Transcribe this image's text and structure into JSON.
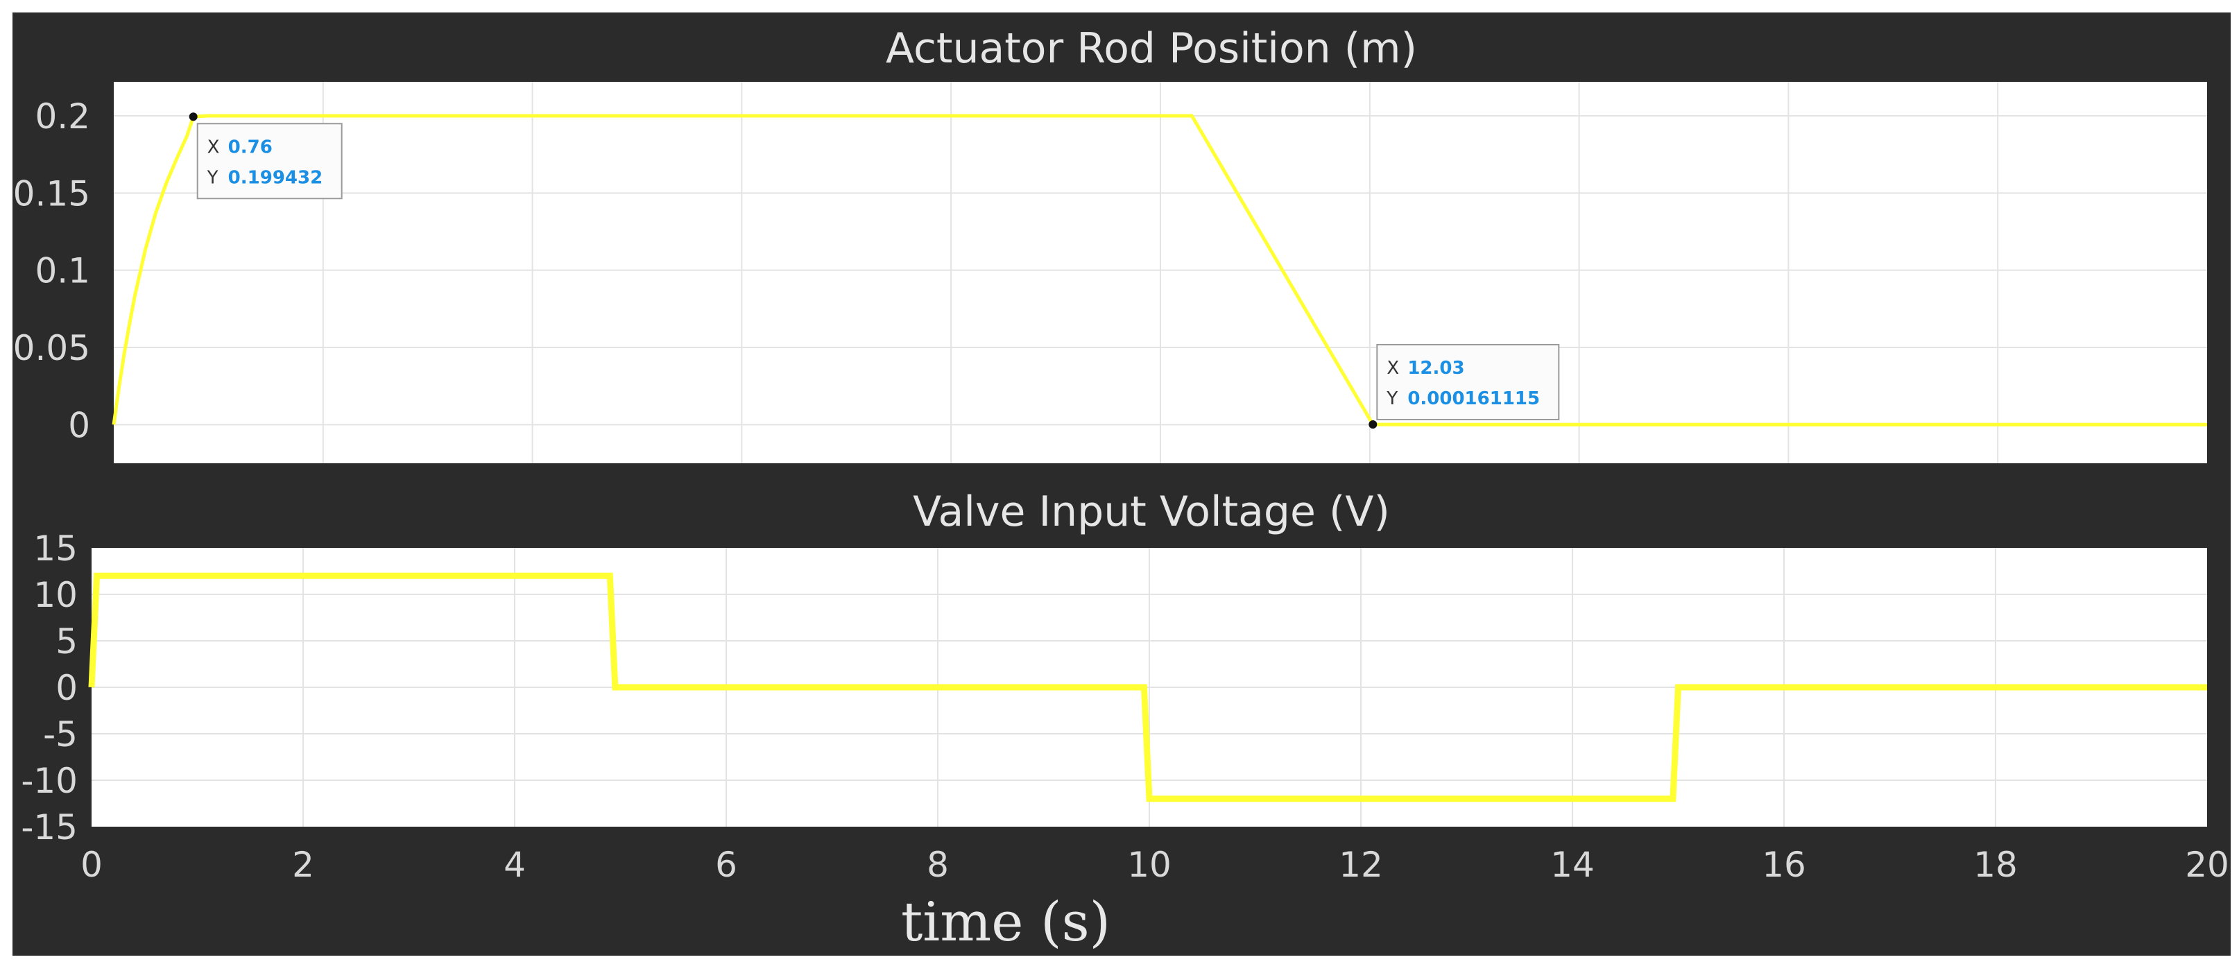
{
  "chart_data": [
    {
      "type": "line",
      "title": "Actuator Rod Position (m)",
      "xlim": [
        0,
        20
      ],
      "ylim": [
        -0.025,
        0.222
      ],
      "yticks": [
        "0",
        "0.05",
        "0.1",
        "0.15",
        "0.2"
      ],
      "ytick_values": [
        0,
        0.05,
        0.1,
        0.15,
        0.2
      ],
      "xgrid_values": [
        2,
        4,
        6,
        8,
        10,
        12,
        14,
        16,
        18
      ],
      "grid": true,
      "series": [
        {
          "color": "#ffff33",
          "x": [
            0,
            0.05,
            0.1,
            0.15,
            0.2,
            0.3,
            0.4,
            0.5,
            0.6,
            0.7,
            0.76,
            0.9,
            1.0,
            2.0,
            4.0,
            6.0,
            8.0,
            10.0,
            10.3,
            12.03,
            13,
            14,
            16,
            18,
            20
          ],
          "y": [
            0,
            0.024,
            0.046,
            0.065,
            0.083,
            0.113,
            0.137,
            0.156,
            0.172,
            0.187,
            0.199432,
            0.2,
            0.2,
            0.2,
            0.2,
            0.2,
            0.2,
            0.2,
            0.2,
            0.000161115,
            0,
            0,
            0,
            0,
            0
          ]
        }
      ],
      "datatips": [
        {
          "x_label": "X",
          "x_value": "0.76",
          "y_label": "Y",
          "y_value": "0.199432",
          "x": 0.76,
          "y": 0.199432
        },
        {
          "x_label": "X",
          "x_value": "12.03",
          "y_label": "Y",
          "y_value": "0.000161115",
          "x": 12.03,
          "y": 0.000161115
        }
      ]
    },
    {
      "type": "line",
      "title": "Valve Input Voltage (V)",
      "xlabel": "time (s)",
      "xlim": [
        0,
        20
      ],
      "ylim": [
        -15,
        15
      ],
      "xticks": [
        "0",
        "2",
        "4",
        "6",
        "8",
        "10",
        "12",
        "14",
        "16",
        "18",
        "20"
      ],
      "xtick_values": [
        0,
        2,
        4,
        6,
        8,
        10,
        12,
        14,
        16,
        18,
        20
      ],
      "yticks": [
        "15",
        "10",
        "5",
        "0",
        "-5",
        "-10",
        "-15"
      ],
      "ytick_values": [
        15,
        10,
        5,
        0,
        -5,
        -10,
        -15
      ],
      "grid": true,
      "series": [
        {
          "color": "#ffff33",
          "x": [
            0,
            0.05,
            4.9,
            4.95,
            9.95,
            10.0,
            14.95,
            15.0,
            20
          ],
          "y": [
            0,
            12,
            12,
            0,
            0,
            -12,
            -12,
            0,
            0
          ]
        }
      ]
    }
  ]
}
